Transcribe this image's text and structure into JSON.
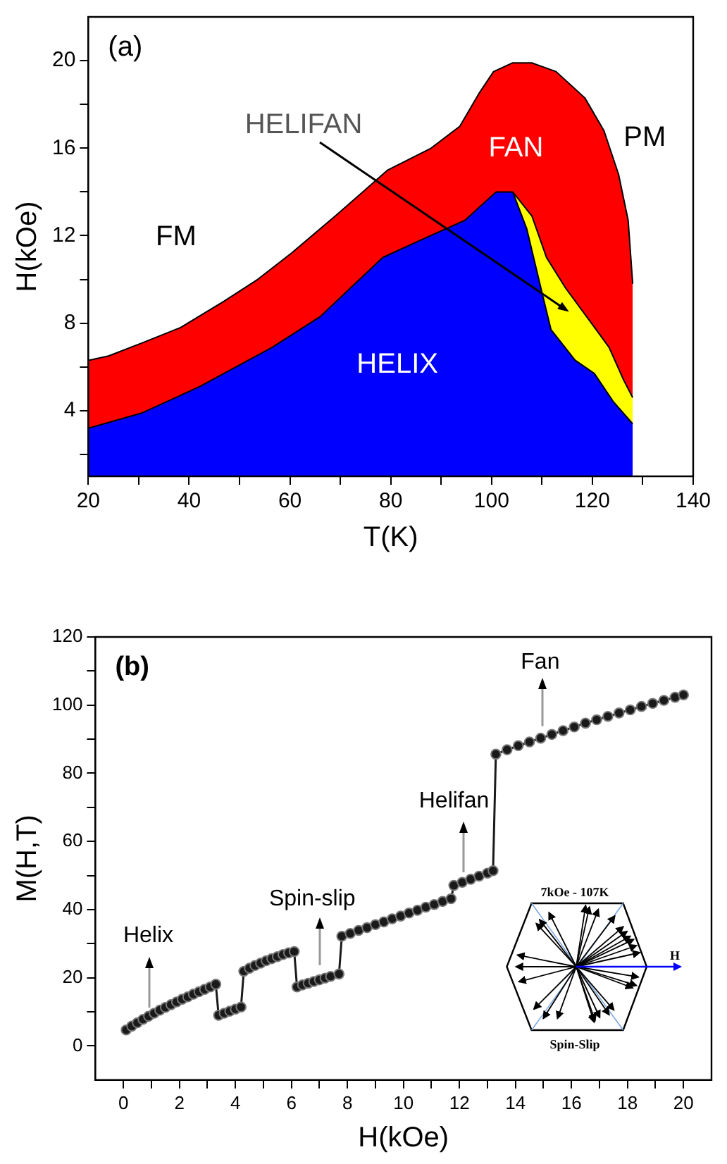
{
  "chart_data": [
    {
      "type": "area",
      "title": "(a)",
      "xlabel": "T(K)",
      "ylabel": "H(kOe)",
      "xlim": [
        20,
        140
      ],
      "xticks": [
        20,
        {
          "value": 30,
          "label": null
        },
        40,
        {
          "value": 50,
          "label": null
        },
        60,
        {
          "value": 70,
          "label": null
        },
        80,
        {
          "value": 90,
          "label": null
        },
        100,
        {
          "value": 110,
          "label": null
        },
        120,
        {
          "value": 130,
          "label": null
        },
        140
      ],
      "ylim": [
        1,
        22
      ],
      "yticks": [
        {
          "value": 2,
          "label": null
        },
        4,
        {
          "value": 6,
          "label": null
        },
        8,
        {
          "value": 10,
          "label": null
        },
        12,
        {
          "value": 14,
          "label": null
        },
        16,
        {
          "value": 18,
          "label": null
        },
        20
      ],
      "grid": false,
      "legend": false,
      "series": [
        {
          "color": "#ff0000",
          "x": [
            20,
            24,
            30.7,
            38.3,
            46.9,
            53.6,
            60.3,
            69,
            79.4,
            88,
            93.7,
            97.5,
            100.4,
            104.2,
            108,
            112.8,
            118.5,
            122.3,
            125.2,
            127.1,
            128
          ],
          "values": [
            6.3,
            6.5,
            7.1,
            7.8,
            9.0,
            10.0,
            11.2,
            12.9,
            15.0,
            16.0,
            17.0,
            18.5,
            19.5,
            19.9,
            19.9,
            19.5,
            18.3,
            16.8,
            14.8,
            12.7,
            9.8
          ]
        },
        {
          "color": "#ffff00",
          "x": [
            104.2,
            108,
            110.9,
            114.7,
            119.5,
            123.3,
            126.2,
            128
          ],
          "values": [
            14.0,
            12.9,
            11.0,
            9.6,
            8.1,
            6.9,
            5.4,
            4.6
          ]
        },
        {
          "color": "#0000ff",
          "x": [
            20,
            30.7,
            42.1,
            56.5,
            66,
            78.4,
            86.9,
            94.7,
            100.9,
            104.2,
            107,
            110,
            111.8,
            116.6,
            120.4,
            124.2,
            128
          ],
          "values": [
            3.2,
            3.9,
            5.1,
            6.9,
            8.3,
            11.0,
            11.9,
            12.7,
            14.0,
            14.0,
            12.3,
            9.4,
            7.7,
            6.3,
            5.7,
            4.4,
            3.4
          ]
        }
      ],
      "annotations": [
        "FM",
        "FAN",
        "PM",
        "HELIX",
        "HELIFAN"
      ]
    },
    {
      "type": "line",
      "title": "(b)",
      "xlabel": "H(kOe)",
      "ylabel": "M(H,T)",
      "xlim": [
        -1,
        21
      ],
      "xticks": [
        0,
        {
          "value": 1,
          "label": null
        },
        2,
        {
          "value": 3,
          "label": null
        },
        4,
        {
          "value": 5,
          "label": null
        },
        6,
        {
          "value": 7,
          "label": null
        },
        8,
        {
          "value": 9,
          "label": null
        },
        10,
        {
          "value": 11,
          "label": null
        },
        12,
        {
          "value": 13,
          "label": null
        },
        14,
        {
          "value": 15,
          "label": null
        },
        16,
        {
          "value": 17,
          "label": null
        },
        18,
        {
          "value": 19,
          "label": null
        },
        20
      ],
      "ylim": [
        -10,
        120
      ],
      "yticks": [
        0,
        {
          "value": 10,
          "label": null
        },
        20,
        {
          "value": 30,
          "label": null
        },
        40,
        {
          "value": 50,
          "label": null
        },
        60,
        {
          "value": 70,
          "label": null
        },
        80,
        {
          "value": 90,
          "label": null
        },
        100,
        {
          "value": 110,
          "label": null
        },
        120
      ],
      "grid": false,
      "legend": false,
      "marker": "circle",
      "series": [
        {
          "color": "#1a1a1a",
          "x": [
            0.1,
            0.3,
            0.5,
            0.7,
            0.9,
            1.1,
            1.3,
            1.5,
            1.7,
            1.9,
            2.1,
            2.3,
            2.5,
            2.7,
            2.9,
            3.1,
            3.3,
            3.4,
            3.6,
            3.8,
            4.0,
            4.2,
            4.3,
            4.5,
            4.7,
            4.9,
            5.1,
            5.3,
            5.5,
            5.7,
            5.9,
            6.1,
            6.2,
            6.4,
            6.6,
            6.8,
            7.0,
            7.2,
            7.4,
            7.7,
            7.8,
            8.1,
            8.4,
            8.7,
            9.0,
            9.3,
            9.6,
            9.9,
            10.2,
            10.5,
            10.8,
            11.1,
            11.4,
            11.7,
            11.8,
            12.1,
            12.4,
            12.7,
            13.0,
            13.2,
            13.3,
            13.7,
            14.1,
            14.5,
            14.9,
            15.3,
            15.7,
            16.1,
            16.5,
            16.9,
            17.3,
            17.7,
            18.1,
            18.5,
            18.9,
            19.3,
            19.7,
            20.0
          ],
          "values": [
            4.7,
            5.8,
            6.8,
            7.8,
            8.7,
            9.6,
            10.5,
            11.3,
            12.1,
            12.9,
            13.7,
            14.4,
            15.2,
            15.9,
            16.6,
            17.3,
            18.1,
            9.0,
            9.6,
            10.2,
            10.8,
            11.4,
            21.9,
            22.8,
            23.6,
            24.3,
            25.0,
            25.6,
            26.2,
            26.8,
            27.3,
            27.7,
            17.3,
            17.9,
            18.4,
            18.9,
            19.4,
            19.9,
            20.4,
            21.1,
            32.2,
            33.0,
            33.9,
            34.7,
            35.6,
            36.4,
            37.3,
            38.1,
            39.0,
            39.8,
            40.7,
            41.5,
            42.4,
            43.2,
            47.1,
            48.0,
            48.9,
            49.8,
            50.7,
            51.4,
            85.6,
            86.9,
            88.1,
            89.2,
            90.3,
            91.4,
            92.5,
            93.6,
            94.7,
            95.7,
            96.7,
            97.7,
            98.6,
            99.6,
            100.5,
            101.4,
            102.3,
            103.0
          ]
        }
      ],
      "annotations": [
        {
          "text": "Helix",
          "x": 0.94,
          "y": 11.2
        },
        "Spin-slip",
        {
          "text": "Helifan",
          "x": 12.16,
          "y": 50.8
        },
        "Fan",
        "7kOe - 107K",
        "Spin-Slip",
        "H"
      ]
    }
  ]
}
